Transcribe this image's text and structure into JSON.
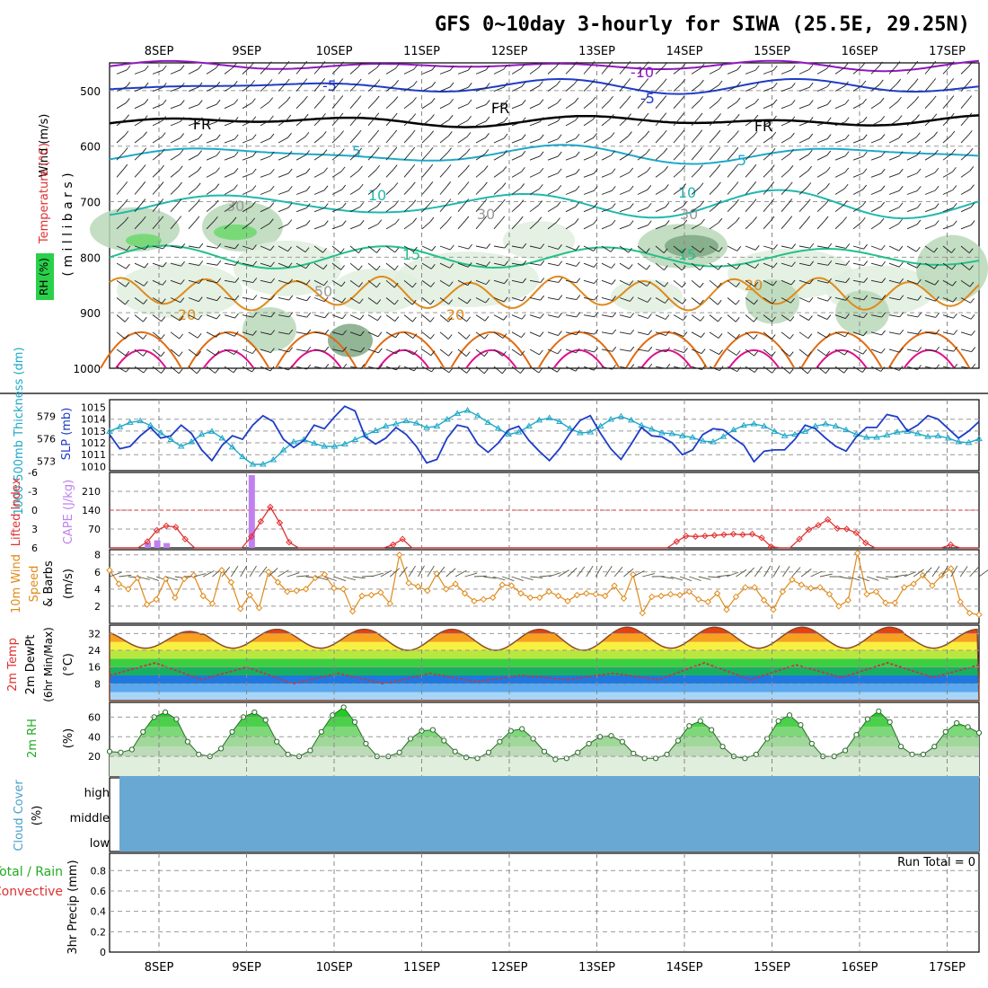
{
  "title": "GFS 0~10day 3-hourly for SIWA (25.5E, 29.25N)",
  "days": [
    "8SEP",
    "9SEP",
    "10SEP",
    "11SEP",
    "12SEP",
    "13SEP",
    "14SEP",
    "15SEP",
    "16SEP",
    "17SEP"
  ],
  "colors": {
    "blue": "#1e3cc8",
    "cyan": "#1fa8c8",
    "teal": "#20b8b0",
    "green": "#22c088",
    "orange": "#e08a1a",
    "darkorange": "#e06a10",
    "magenta": "#e0108a",
    "purple": "#9018c0",
    "rh_light": "#dfeede",
    "rh_mid": "#b8d8b8",
    "rh_dark": "#7fa884",
    "rh_bright": "#6cd86c",
    "cloud": "#6aa8d4",
    "cape": "#c080f0",
    "li": "#e03030",
    "wind10": "#e08a1a"
  },
  "chart_data": [
    {
      "id": "upper-air",
      "type": "contour",
      "ylabel_parts": [
        "RH (%)",
        "Temperature (°C)",
        "Wind (m/s)"
      ],
      "ylabel_unit": "( m i l l i b a r s )",
      "yticks": [
        "500",
        "600",
        "700",
        "800",
        "900",
        "1000"
      ],
      "contour_labels": [
        "-10",
        "-5",
        "-5",
        "FR",
        "FR",
        "FR",
        "-5",
        "5",
        "5",
        "10",
        "10",
        "15",
        "15",
        "20",
        "20",
        "20",
        "30",
        "30",
        "30",
        "50"
      ]
    },
    {
      "id": "slp-thickness",
      "type": "line",
      "ylabel_left": "1000-500mb Thickness (dm)",
      "ylabel_right": "SLP (mb)",
      "yticks_left": [
        "579",
        "576",
        "573"
      ],
      "yticks_right": [
        "1015",
        "1014",
        "1013",
        "1012",
        "1011",
        "1010"
      ],
      "ylim_slp": [
        1009.8,
        1015.5
      ],
      "ylim_thk": [
        572,
        581
      ],
      "slp": [
        1012.7,
        1011.5,
        1011.7,
        1012.6,
        1013.3,
        1012.4,
        1012.6,
        1013.5,
        1012.8,
        1011.4,
        1010.5,
        1011.8,
        1012.6,
        1012.3,
        1013.5,
        1014.3,
        1013.8,
        1012.3,
        1011.6,
        1012.2,
        1013.5,
        1013.2,
        1014.2,
        1015.1,
        1014.7,
        1012.5,
        1011.9,
        1012.4,
        1013.3,
        1012.7,
        1011.7,
        1010.3,
        1010.6,
        1012.4,
        1013.5,
        1013.3,
        1011.9,
        1011.2,
        1012.0,
        1013.1,
        1013.4,
        1012.2,
        1011.3,
        1010.5,
        1011.5,
        1012.8,
        1013.9,
        1014.3,
        1012.8,
        1011.5,
        1010.6,
        1011.9,
        1013.3,
        1012.6,
        1012.5,
        1012.0,
        1011.0,
        1011.4,
        1012.7,
        1013.2,
        1013.1,
        1012.4,
        1011.8,
        1010.4,
        1011.3,
        1011.4,
        1011.4,
        1012.3,
        1013.5,
        1013.2,
        1012.4,
        1011.7,
        1011.3,
        1012.5,
        1013.3,
        1013.3,
        1014.4,
        1014.2,
        1013.0,
        1013.5,
        1014.3,
        1014.0,
        1013.2,
        1012.4,
        1013.0,
        1013.8
      ],
      "thickness": [
        577.0,
        577.6,
        578.2,
        578.4,
        577.8,
        576.8,
        575.9,
        575.0,
        575.6,
        576.6,
        577.0,
        576.1,
        574.9,
        573.6,
        572.6,
        572.6,
        573.2,
        574.5,
        575.6,
        575.9,
        575.4,
        575.0,
        575.0,
        575.3,
        575.9,
        576.5,
        577.1,
        577.7,
        578.0,
        578.4,
        578.1,
        577.5,
        577.7,
        578.6,
        579.4,
        579.8,
        579.1,
        578.2,
        577.4,
        576.6,
        576.9,
        577.7,
        578.5,
        578.8,
        578.3,
        577.4,
        576.8,
        576.9,
        577.7,
        578.6,
        579.0,
        578.5,
        577.8,
        577.3,
        576.8,
        576.7,
        576.4,
        576.2,
        575.7,
        575.6,
        576.3,
        577.2,
        577.8,
        578.0,
        577.7,
        577.0,
        576.4,
        576.6,
        577.0,
        577.7,
        578.0,
        577.7,
        577.2,
        576.6,
        576.2,
        576.2,
        576.5,
        576.9,
        577.0,
        576.7,
        576.3,
        576.4,
        576.1,
        575.6,
        575.5,
        576.0
      ]
    },
    {
      "id": "instability",
      "type": "bar",
      "ylabel_left": "Lifted Index",
      "ylabel_right": "CAPE (J/kg)",
      "yticks_li": [
        "-6",
        "-3",
        "0",
        "3",
        "6"
      ],
      "yticks_cape": [
        "210",
        "140",
        "70"
      ],
      "ylim_cape": [
        0,
        280
      ],
      "ylim_li": [
        -6,
        6
      ],
      "cape_bars": [
        [
          4,
          20
        ],
        [
          5,
          28
        ],
        [
          6,
          18
        ],
        [
          15,
          270
        ]
      ],
      "li": [
        6,
        6,
        6,
        6,
        5,
        3.2,
        2.5,
        2.7,
        4.6,
        6,
        6,
        6,
        6,
        6,
        6,
        4.2,
        1.8,
        -0.5,
        2.0,
        5.1,
        6,
        6,
        6,
        6,
        6,
        6,
        6,
        6,
        6,
        6,
        5.5,
        4.6,
        6,
        6,
        6,
        6,
        6,
        6,
        6,
        6,
        6,
        6,
        6,
        6,
        6,
        6,
        6,
        6,
        6,
        6,
        6,
        6,
        6,
        6,
        6,
        6,
        6,
        6,
        6,
        6,
        5.0,
        4.1,
        4.2,
        4.1,
        4.0,
        3.9,
        3.8,
        3.9,
        3.8,
        4.4,
        5.8,
        6,
        6,
        4.6,
        3.1,
        2.4,
        1.5,
        2.9,
        3.0,
        3.6,
        5.2,
        6,
        6,
        6,
        6,
        6,
        6,
        6,
        6,
        5.5,
        6,
        6,
        6
      ]
    },
    {
      "id": "wind10m",
      "type": "line",
      "ylabel": "10m Wind Speed & Barbs (m/s)",
      "yticks": [
        "8",
        "6",
        "4",
        "2"
      ],
      "ylim": [
        0,
        8.6
      ],
      "values": [
        6.2,
        4.6,
        4.0,
        5.3,
        2.2,
        2.8,
        5.2,
        3.0,
        5.2,
        5.6,
        3.2,
        2.3,
        6.2,
        4.8,
        1.7,
        3.3,
        1.8,
        6.0,
        4.8,
        3.7,
        3.8,
        4.0,
        5.3,
        5.7,
        4.1,
        4.0,
        1.4,
        3.2,
        3.3,
        3.6,
        2.3,
        8.0,
        4.7,
        4.3,
        3.8,
        5.8,
        4.0,
        4.6,
        3.5,
        2.6,
        2.8,
        3.0,
        4.5,
        4.4,
        3.5,
        3.0,
        3.0,
        3.7,
        3.2,
        2.6,
        3.3,
        3.5,
        3.4,
        3.2,
        4.4,
        2.9,
        5.7,
        1.2,
        3.1,
        3.2,
        3.4,
        3.3,
        3.7,
        2.8,
        2.5,
        3.5,
        1.6,
        3.1,
        4.2,
        4.2,
        2.7,
        1.6,
        3.7,
        5.1,
        4.5,
        4.1,
        4.2,
        3.4,
        2.0,
        2.7,
        8.2,
        3.4,
        3.7,
        2.4,
        2.4,
        4.2,
        4.6,
        5.6,
        4.4,
        5.6,
        6.4,
        2.5,
        1.2,
        1.0
      ]
    },
    {
      "id": "temp2m",
      "type": "area",
      "ylabel": "2m Temp / 2m DewPt (6hr Min/Max) (°C)",
      "yticks": [
        "32",
        "24",
        "16",
        "8"
      ],
      "ylim": [
        0,
        36
      ],
      "temp_max": [
        33,
        34,
        34,
        34,
        34,
        35,
        35,
        35,
        35,
        34
      ],
      "temp_min": [
        25,
        25,
        25,
        24,
        24,
        24,
        25,
        25,
        25,
        25
      ],
      "dewpoint": [
        12,
        18,
        10,
        16,
        8,
        13,
        8,
        13,
        9,
        12,
        10,
        13,
        10,
        18,
        10,
        17,
        11,
        18,
        11,
        17
      ]
    },
    {
      "id": "rh2m",
      "type": "area",
      "ylabel": "2m RH (%)",
      "yticks": [
        "60",
        "40",
        "20"
      ],
      "ylim": [
        0,
        75
      ],
      "values": [
        25,
        24,
        27,
        45,
        60,
        65,
        58,
        35,
        22,
        20,
        28,
        45,
        60,
        65,
        57,
        35,
        22,
        20,
        26,
        45,
        62,
        70,
        55,
        33,
        20,
        20,
        24,
        38,
        46,
        47,
        36,
        25,
        19,
        18,
        24,
        35,
        46,
        48,
        38,
        25,
        17,
        18,
        24,
        33,
        40,
        41,
        35,
        23,
        18,
        18,
        22,
        36,
        51,
        56,
        47,
        30,
        20,
        18,
        22,
        38,
        56,
        62,
        52,
        33,
        20,
        20,
        26,
        42,
        58,
        66,
        55,
        30,
        22,
        22,
        30,
        45,
        54,
        50,
        44
      ]
    },
    {
      "id": "cloud",
      "type": "area",
      "ylabel": "Cloud Cover (%)",
      "levels": [
        "high",
        "middle",
        "low"
      ]
    },
    {
      "id": "precip",
      "type": "bar",
      "ylabel_left": "Total / Rain Convective",
      "label_total": "Total / Rain",
      "label_convective": "Convective",
      "ylabel_right": "3hr Precip (mm)",
      "yticks": [
        "0.8",
        "0.6",
        "0.4",
        "0.2",
        "0"
      ],
      "ylim": [
        0,
        0.97
      ],
      "run_total": "Run Total = 0",
      "values": []
    }
  ]
}
